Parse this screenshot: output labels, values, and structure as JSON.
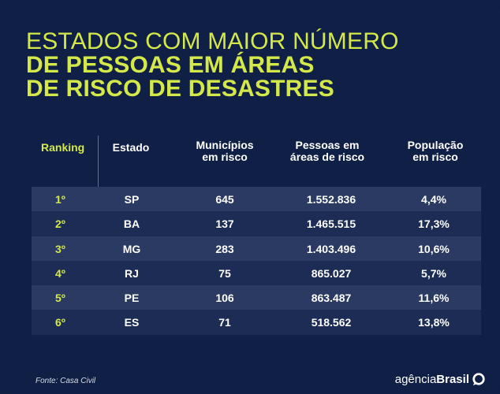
{
  "title": {
    "line1": "ESTADOS COM MAIOR NÚMERO",
    "line2": "DE PESSOAS EM ÁREAS",
    "line3": "DE RISCO DE DESASTRES"
  },
  "headers": {
    "ranking": "Ranking",
    "estado": "Estado",
    "municipios_1": "Municípios",
    "municipios_2": "em risco",
    "pessoas_1": "Pessoas em",
    "pessoas_2": "áreas de risco",
    "populacao_1": "População",
    "populacao_2": "em risco"
  },
  "rows": [
    {
      "rank": "1º",
      "state": "SP",
      "municipios": "645",
      "pessoas": "1.552.836",
      "populacao": "4,4%"
    },
    {
      "rank": "2º",
      "state": "BA",
      "municipios": "137",
      "pessoas": "1.465.515",
      "populacao": "17,3%"
    },
    {
      "rank": "3º",
      "state": "MG",
      "municipios": "283",
      "pessoas": "1.403.496",
      "populacao": "10,6%"
    },
    {
      "rank": "4º",
      "state": "RJ",
      "municipios": "75",
      "pessoas": "865.027",
      "populacao": "5,7%"
    },
    {
      "rank": "5º",
      "state": "PE",
      "municipios": "106",
      "pessoas": "863.487",
      "populacao": "11,6%"
    },
    {
      "rank": "6º",
      "state": "ES",
      "municipios": "71",
      "pessoas": "518.562",
      "populacao": "13,8%"
    }
  ],
  "footer": {
    "source": "Fonte: Casa Civil",
    "brand_light": "agência",
    "brand_bold": "Brasil",
    "brand_icon": "agencia-brasil-logo-icon"
  },
  "colors": {
    "background": "#0f1f45",
    "accent": "#d5e84a",
    "row_odd": "#2a3a62",
    "row_even": "#1c2c54"
  }
}
